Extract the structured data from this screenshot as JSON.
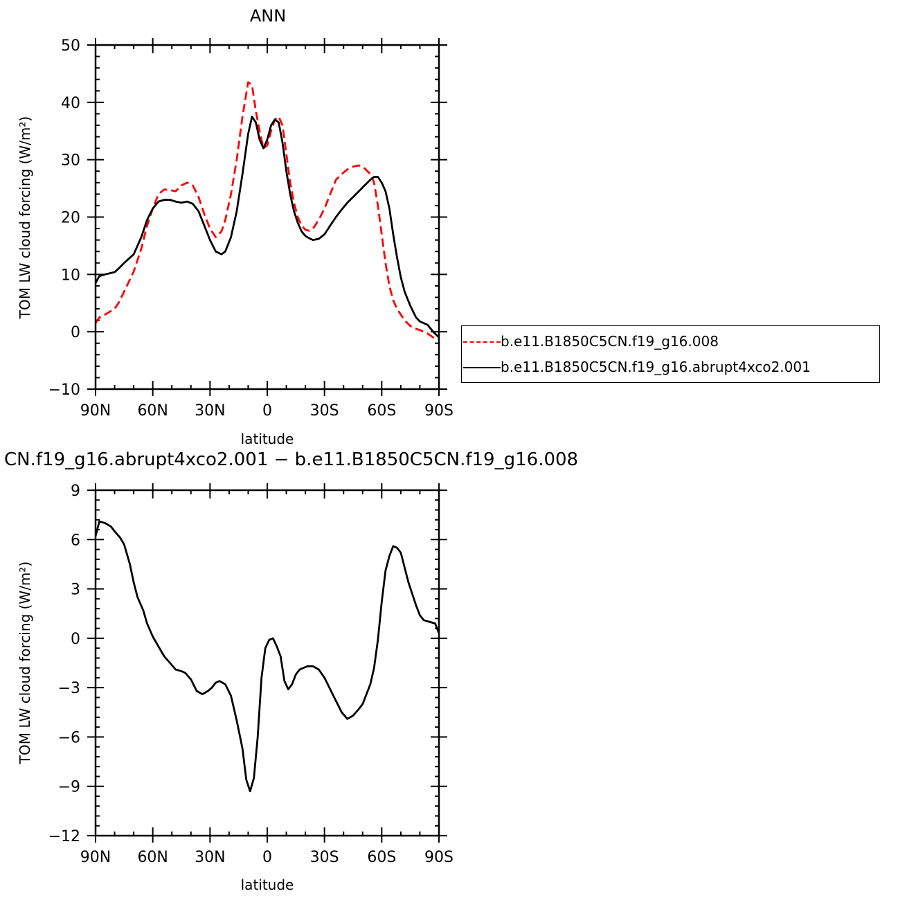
{
  "chart_data": [
    {
      "type": "line",
      "title": "ANN",
      "xlabel": "latitude",
      "ylabel": "TOM LW cloud forcing (W/m²)",
      "xlim": [
        -90,
        90
      ],
      "ylim": [
        -10,
        50
      ],
      "x_ticks": [
        -90,
        -60,
        -30,
        0,
        30,
        60,
        90
      ],
      "x_tick_labels": [
        "90N",
        "60N",
        "30N",
        "0",
        "30S",
        "60S",
        "90S"
      ],
      "y_ticks": [
        -10,
        0,
        10,
        20,
        30,
        40,
        50
      ],
      "y_tick_labels": [
        "−10",
        "0",
        "10",
        "20",
        "30",
        "40",
        "50"
      ],
      "legend_position": "right",
      "series": [
        {
          "name": "b.e11.B1850C5CN.f19_g16.008",
          "color": "#ff0000",
          "dash": "dashed",
          "x": [
            -90,
            -88,
            -85,
            -80,
            -78,
            -75,
            -70,
            -66,
            -63,
            -60,
            -57,
            -54,
            -51,
            -48,
            -45,
            -42,
            -39,
            -36,
            -33,
            -30,
            -27,
            -24,
            -22,
            -19,
            -16,
            -13,
            -10,
            -8,
            -6,
            -4,
            -2,
            0,
            2,
            4,
            6,
            8,
            10,
            12,
            14,
            16,
            18,
            20,
            22,
            24,
            27,
            30,
            33,
            36,
            39,
            42,
            45,
            48,
            51,
            54,
            56,
            58,
            60,
            62,
            64,
            66,
            68,
            70,
            72,
            75,
            78,
            80,
            82,
            84,
            87,
            90
          ],
          "values": [
            1.5,
            2.5,
            3.0,
            4.0,
            5.0,
            7.0,
            10.5,
            14.5,
            18.5,
            21.5,
            24.0,
            24.8,
            24.7,
            24.5,
            25.5,
            26.0,
            25.5,
            23.5,
            20.5,
            18.0,
            16.5,
            17.5,
            19.5,
            24.0,
            30.0,
            37.5,
            43.5,
            43.0,
            38.5,
            35.0,
            32.0,
            32.5,
            35.0,
            37.0,
            37.5,
            36.0,
            31.0,
            26.0,
            22.5,
            20.0,
            18.5,
            17.8,
            17.6,
            18.0,
            19.5,
            21.5,
            24.0,
            26.5,
            27.5,
            28.3,
            28.8,
            29.0,
            28.5,
            27.5,
            26.0,
            22.0,
            17.0,
            12.0,
            8.0,
            5.5,
            4.0,
            3.0,
            2.0,
            1.0,
            0.5,
            0.3,
            0.0,
            -0.3,
            -1.0,
            -1.3
          ]
        },
        {
          "name": "b.e11.B1850C5CN.f19_g16.abrupt4xco2.001",
          "color": "#000000",
          "dash": "solid",
          "x": [
            -90,
            -88,
            -85,
            -80,
            -78,
            -75,
            -70,
            -66,
            -63,
            -60,
            -57,
            -54,
            -51,
            -48,
            -45,
            -42,
            -39,
            -36,
            -33,
            -30,
            -27,
            -24,
            -22,
            -19,
            -16,
            -13,
            -10,
            -8,
            -6,
            -4,
            -2,
            0,
            2,
            4,
            6,
            8,
            10,
            12,
            14,
            16,
            18,
            20,
            22,
            24,
            27,
            30,
            33,
            36,
            39,
            42,
            45,
            48,
            51,
            54,
            56,
            58,
            60,
            62,
            64,
            66,
            68,
            70,
            72,
            75,
            78,
            80,
            82,
            84,
            87,
            90
          ],
          "values": [
            8.5,
            9.7,
            10.0,
            10.4,
            11.0,
            12.0,
            13.5,
            16.5,
            19.5,
            21.5,
            22.7,
            23.0,
            23.0,
            22.7,
            22.5,
            22.7,
            22.3,
            21.0,
            18.5,
            16.0,
            14.0,
            13.5,
            14.0,
            16.5,
            21.0,
            27.5,
            34.5,
            37.5,
            36.5,
            33.5,
            32.0,
            33.5,
            36.0,
            37.0,
            36.5,
            33.0,
            28.0,
            24.0,
            21.0,
            19.0,
            17.5,
            16.7,
            16.3,
            16.0,
            16.2,
            17.0,
            18.5,
            20.0,
            21.3,
            22.5,
            23.5,
            24.5,
            25.5,
            26.5,
            27.0,
            27.0,
            26.0,
            24.5,
            21.5,
            17.0,
            13.0,
            9.5,
            7.0,
            4.5,
            2.5,
            1.8,
            1.5,
            1.2,
            0.0,
            -1.0
          ]
        }
      ]
    },
    {
      "type": "line",
      "title": "CN.f19_g16.abrupt4xco2.001 − b.e11.B1850C5CN.f19_g16.008",
      "xlabel": "latitude",
      "ylabel": "TOM LW cloud forcing (W/m²)",
      "xlim": [
        -90,
        90
      ],
      "ylim": [
        -12,
        9
      ],
      "x_ticks": [
        -90,
        -60,
        -30,
        0,
        30,
        60,
        90
      ],
      "x_tick_labels": [
        "90N",
        "60N",
        "30N",
        "0",
        "30S",
        "60S",
        "90S"
      ],
      "y_ticks": [
        -12,
        -9,
        -6,
        -3,
        0,
        3,
        6,
        9
      ],
      "y_tick_labels": [
        "−12",
        "−9",
        "−6",
        "−3",
        "0",
        "3",
        "6",
        "9"
      ],
      "series": [
        {
          "color": "#000000",
          "dash": "solid",
          "x": [
            -90,
            -88,
            -85,
            -82,
            -80,
            -77,
            -75,
            -72,
            -70,
            -68,
            -65,
            -63,
            -60,
            -57,
            -54,
            -51,
            -48,
            -45,
            -43,
            -40,
            -37,
            -34,
            -31,
            -29,
            -27,
            -25,
            -22,
            -19,
            -16,
            -13,
            -11,
            -9,
            -7,
            -5,
            -3,
            -1,
            1,
            3,
            5,
            7,
            9,
            11,
            13,
            15,
            17,
            19,
            21,
            24,
            27,
            30,
            33,
            36,
            39,
            42,
            45,
            48,
            50,
            52,
            54,
            56,
            58,
            60,
            62,
            64,
            66,
            68,
            70,
            72,
            74,
            76,
            78,
            80,
            82,
            85,
            88,
            90
          ],
          "values": [
            6.2,
            7.1,
            7.0,
            6.8,
            6.5,
            6.1,
            5.7,
            4.5,
            3.4,
            2.5,
            1.7,
            0.9,
            0.1,
            -0.5,
            -1.1,
            -1.5,
            -1.9,
            -2.0,
            -2.1,
            -2.5,
            -3.2,
            -3.4,
            -3.2,
            -3.0,
            -2.7,
            -2.6,
            -2.8,
            -3.5,
            -5.0,
            -6.7,
            -8.6,
            -9.3,
            -8.5,
            -6.0,
            -2.4,
            -0.6,
            -0.1,
            0.0,
            -0.5,
            -1.1,
            -2.6,
            -3.1,
            -2.8,
            -2.2,
            -1.9,
            -1.8,
            -1.7,
            -1.7,
            -1.9,
            -2.4,
            -3.1,
            -3.8,
            -4.5,
            -4.9,
            -4.7,
            -4.3,
            -4.0,
            -3.4,
            -2.8,
            -1.8,
            -0.1,
            2.2,
            4.1,
            5.0,
            5.6,
            5.5,
            5.2,
            4.3,
            3.4,
            2.7,
            2.0,
            1.4,
            1.1,
            1.0,
            0.9,
            0.3
          ]
        }
      ]
    }
  ]
}
